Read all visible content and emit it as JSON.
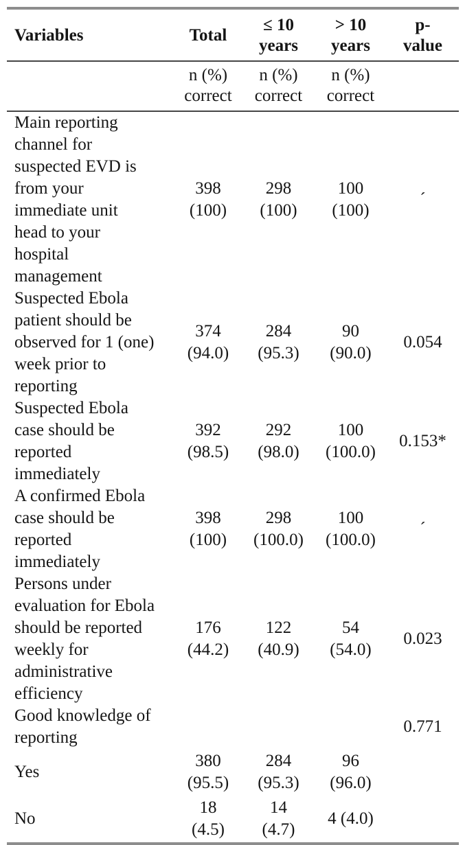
{
  "accent_colors": {
    "outer_border": "#8d8d8d",
    "inner_rule": "#454545",
    "text": "#151515",
    "background": "#ffffff"
  },
  "table": {
    "header": {
      "variables": "Variables",
      "total": "Total",
      "le10_years": "≤ 10\nyears",
      "gt10_years": "> 10\nyears",
      "p_value": "p-\nvalue"
    },
    "subheader": {
      "n_percent_correct": "n (%)\ncorrect"
    },
    "rows": [
      {
        "label": "Main reporting\nchannel for\nsuspected EVD is\nfrom your\nimmediate unit\nhead to your\nhospital\nmanagement",
        "total": "398\n(100)",
        "le10": "298\n(100)",
        "gt10": "100\n(100)",
        "p": "´"
      },
      {
        "label": "Suspected Ebola\npatient should be\nobserved for 1 (one)\nweek prior to\nreporting",
        "total": "374\n(94.0)",
        "le10": "284\n(95.3)",
        "gt10": "90\n(90.0)",
        "p": "0.054"
      },
      {
        "label": "Suspected Ebola\ncase should be\nreported\nimmediately",
        "total": "392\n(98.5)",
        "le10": "292\n(98.0)",
        "gt10": "100\n(100.0)",
        "p": "0.153*"
      },
      {
        "label": "A confirmed Ebola\ncase should be\nreported\nimmediately",
        "total": "398\n(100)",
        "le10": "298\n(100.0)",
        "gt10": "100\n(100.0)",
        "p": "´"
      },
      {
        "label": "Persons under\nevaluation for Ebola\nshould be reported\nweekly for\nadministrative\nefficiency",
        "total": "176\n(44.2)",
        "le10": "122\n(40.9)",
        "gt10": "54\n(54.0)",
        "p": "0.023"
      },
      {
        "label": "Good knowledge of\nreporting",
        "total": "",
        "le10": "",
        "gt10": "",
        "p": "0.771"
      },
      {
        "label": "Yes",
        "total": "380\n(95.5)",
        "le10": "284\n(95.3)",
        "gt10": "96\n(96.0)",
        "p": ""
      },
      {
        "label": "No",
        "total": "18\n(4.5)",
        "le10": "14\n(4.7)",
        "gt10": "4 (4.0)",
        "p": ""
      }
    ]
  }
}
